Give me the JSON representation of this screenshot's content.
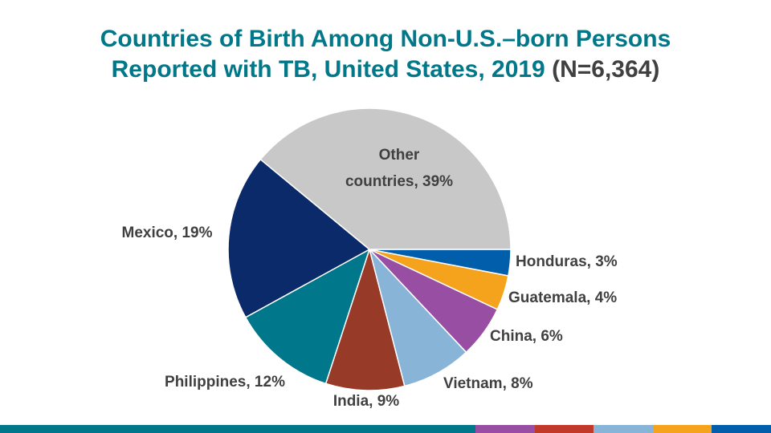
{
  "title": {
    "line1": "Countries of Birth Among Non-U.S.–born Persons",
    "line2": "Reported with TB, United States, 2019",
    "n_label": "(N=6,364)"
  },
  "chart_data": {
    "type": "pie",
    "title": "Countries of Birth Among Non-U.S.–born Persons Reported with TB, United States, 2019 (N=6,364)",
    "slices": [
      {
        "name": "Honduras",
        "value": 3,
        "color": "#005eaa",
        "label": "Honduras, 3%"
      },
      {
        "name": "Guatemala",
        "value": 4,
        "color": "#f5a21d",
        "label": "Guatemala, 4%"
      },
      {
        "name": "China",
        "value": 6,
        "color": "#984ea3",
        "label": "China, 6%"
      },
      {
        "name": "Vietnam",
        "value": 8,
        "color": "#88b4d8",
        "label": "Vietnam, 8%"
      },
      {
        "name": "India",
        "value": 9,
        "color": "#973a27",
        "label": "India, 9%"
      },
      {
        "name": "Philippines",
        "value": 12,
        "color": "#00778a",
        "label": "Philippines, 12%"
      },
      {
        "name": "Mexico",
        "value": 19,
        "color": "#0b2a6a",
        "label": "Mexico, 19%"
      },
      {
        "name": "Other countries",
        "value": 39,
        "color": "#c8c8c8",
        "label_lines": [
          "Other",
          "countries, 39%"
        ]
      }
    ]
  },
  "footer_colors": [
    "#00788a",
    "#984ea3",
    "#c0392b",
    "#88b4d8",
    "#f5a21d",
    "#005eaa"
  ]
}
